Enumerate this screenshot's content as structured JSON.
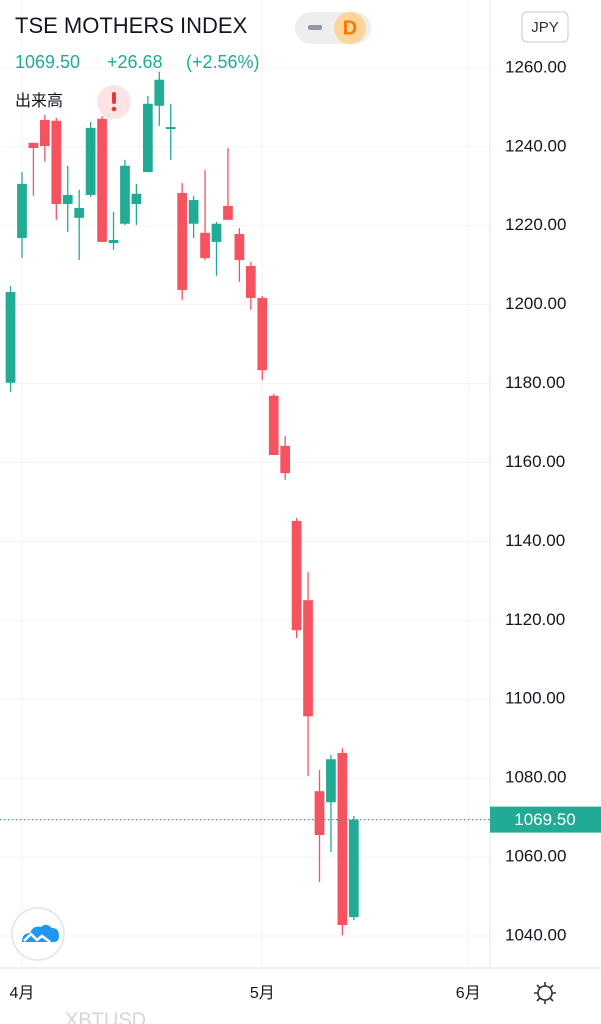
{
  "header": {
    "title": "TSE MOTHERS INDEX",
    "price": "1069.50",
    "change": "+26.68",
    "change_pct": "(+2.56%)",
    "interval": "D",
    "currency": "JPY",
    "volume_label": "出来高"
  },
  "chart_data": {
    "type": "candlestick",
    "x": [
      0,
      1,
      2,
      3,
      4,
      5,
      6,
      7,
      8,
      9,
      10,
      11,
      12,
      13,
      14,
      15,
      16,
      17,
      18,
      19,
      20,
      21,
      22,
      23,
      24,
      25,
      26,
      27,
      28,
      29,
      30
    ],
    "open": [
      1180.2,
      1216.9,
      1241.0,
      1246.8,
      1246.6,
      1225.5,
      1222.0,
      1227.8,
      1247.1,
      1215.6,
      1220.5,
      1225.5,
      1233.6,
      1250.4,
      1244.5,
      1228.3,
      1220.5,
      1218.2,
      1215.9,
      1225.0,
      1217.9,
      1209.8,
      1201.7,
      1176.9,
      1164.2,
      1145.2,
      1125.1,
      1076.7,
      1073.9,
      1086.4,
      1044.8
    ],
    "high": [
      1204.7,
      1233.6,
      1241.0,
      1248.1,
      1247.3,
      1235.2,
      1229.1,
      1246.3,
      1247.8,
      1223.5,
      1236.7,
      1230.6,
      1252.9,
      1259.0,
      1250.9,
      1230.8,
      1227.6,
      1234.1,
      1221.0,
      1239.7,
      1219.4,
      1210.8,
      1202.2,
      1177.4,
      1166.7,
      1145.9,
      1132.2,
      1082.1,
      1085.9,
      1087.6,
      1070.4
    ],
    "low": [
      1177.9,
      1211.8,
      1227.6,
      1236.2,
      1221.5,
      1218.4,
      1211.3,
      1227.3,
      1215.9,
      1213.9,
      1220.2,
      1220.2,
      1233.6,
      1245.3,
      1236.7,
      1201.2,
      1216.9,
      1211.3,
      1207.3,
      1221.5,
      1205.8,
      1198.7,
      1180.9,
      1161.9,
      1155.6,
      1115.5,
      1080.5,
      1053.7,
      1061.3,
      1040.2,
      1044.0
    ],
    "close": [
      1203.2,
      1230.6,
      1239.7,
      1240.2,
      1225.5,
      1227.8,
      1224.5,
      1244.8,
      1215.9,
      1216.4,
      1235.2,
      1228.1,
      1250.9,
      1257.0,
      1245.0,
      1203.7,
      1226.5,
      1211.8,
      1220.5,
      1221.5,
      1211.3,
      1201.7,
      1183.4,
      1161.9,
      1157.3,
      1117.5,
      1095.7,
      1065.6,
      1084.8,
      1042.8,
      1069.5
    ],
    "up_color": "#22ab94",
    "down_color": "#f7525f",
    "xlim": [
      -0.92,
      41.9
    ],
    "xticks": [
      {
        "value": 1,
        "label": "4月"
      },
      {
        "value": 22,
        "label": "5月"
      },
      {
        "value": 40,
        "label": "6月"
      }
    ],
    "ylim": [
      1031.9,
      1277.2
    ],
    "yticks": [
      {
        "value": 1040,
        "label": "1040.00"
      },
      {
        "value": 1060,
        "label": "1060.00"
      },
      {
        "value": 1080,
        "label": "1080.00"
      },
      {
        "value": 1100,
        "label": "1100.00"
      },
      {
        "value": 1120,
        "label": "1120.00"
      },
      {
        "value": 1140,
        "label": "1140.00"
      },
      {
        "value": 1160,
        "label": "1160.00"
      },
      {
        "value": 1180,
        "label": "1180.00"
      },
      {
        "value": 1200,
        "label": "1200.00"
      },
      {
        "value": 1220,
        "label": "1220.00"
      },
      {
        "value": 1240,
        "label": "1240.00"
      },
      {
        "value": 1260,
        "label": "1260.00"
      }
    ],
    "grid": true
  },
  "footer": {
    "faded_text": "XBTUSD"
  }
}
